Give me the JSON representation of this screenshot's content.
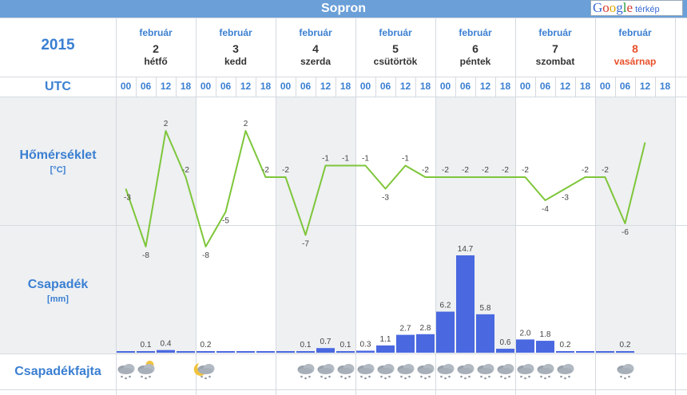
{
  "header": {
    "city": "Sopron"
  },
  "map_link": {
    "google": [
      "G",
      "o",
      "o",
      "g",
      "l",
      "e"
    ],
    "label": "térkép"
  },
  "year": "2015",
  "utc_label": "UTC",
  "rows": {
    "temperature": {
      "label": "Hőmérséklet",
      "unit": "[°C]"
    },
    "precipitation": {
      "label": "Csapadék",
      "unit": "[mm]"
    },
    "precip_type": {
      "label": "Csapadékfajta"
    }
  },
  "days": [
    {
      "month": "február",
      "day": "2",
      "weekday": "hétfő"
    },
    {
      "month": "február",
      "day": "3",
      "weekday": "kedd"
    },
    {
      "month": "február",
      "day": "4",
      "weekday": "szerda"
    },
    {
      "month": "február",
      "day": "5",
      "weekday": "csütörtök"
    },
    {
      "month": "február",
      "day": "6",
      "weekday": "péntek"
    },
    {
      "month": "február",
      "day": "7",
      "weekday": "szombat"
    },
    {
      "month": "február",
      "day": "8",
      "weekday": "vasárnap"
    }
  ],
  "hours": [
    "00",
    "06",
    "12",
    "18"
  ],
  "colors": {
    "accent": "#3a7fd2",
    "line": "#7ec63a",
    "bar": "#4a68e0",
    "sunday": "#e8502a"
  },
  "chart_data": [
    {
      "type": "line",
      "title": "Hőmérséklet",
      "ylabel": "[°C]",
      "values": [
        -3,
        -8,
        2,
        -2,
        -8,
        -5,
        2,
        -2,
        -2,
        -7,
        -1,
        -1,
        -1,
        -3,
        -1,
        -2,
        -2,
        -2,
        -2,
        -2,
        -2,
        -4,
        -3,
        -2,
        -2,
        -6,
        1
      ],
      "labels": [
        "-3",
        "-8",
        "2",
        "-2",
        "-8",
        "-5",
        "2",
        "-2",
        "-2",
        "-7",
        "-1",
        "-1",
        "-1",
        "-3",
        "-1",
        "-2",
        "-2",
        "-2",
        "-2",
        "-2",
        "-2",
        "-4",
        "-3",
        "-2",
        "-2",
        "-6",
        ""
      ]
    },
    {
      "type": "bar",
      "title": "Csapadék",
      "ylabel": "[mm]",
      "values": [
        0,
        0.1,
        0.4,
        0,
        0.2,
        0,
        0,
        0,
        0,
        0.1,
        0.7,
        0.1,
        0.3,
        1.1,
        2.7,
        2.8,
        6.2,
        14.7,
        5.8,
        0.6,
        2.0,
        1.8,
        0.2,
        0,
        0,
        0.2
      ],
      "labels": [
        "",
        "0.1",
        "0.4",
        "",
        "0.2",
        "",
        "",
        "",
        "",
        "0.1",
        "0.7",
        "0.1",
        "0.3",
        "1.1",
        "2.7",
        "2.8",
        "6.2",
        "14.7",
        "5.8",
        "0.6",
        "2.0",
        "1.8",
        "0.2",
        "",
        "",
        "0.2"
      ]
    }
  ],
  "precip_icons": [
    "snow",
    "mixed",
    "",
    "",
    "night-snow",
    "",
    "",
    "",
    "",
    "snow",
    "snow",
    "snow",
    "snow",
    "snow",
    "snow",
    "snow",
    "snow",
    "snow",
    "snow",
    "snow",
    "snow",
    "snow",
    "snow",
    "",
    "",
    "snow"
  ]
}
